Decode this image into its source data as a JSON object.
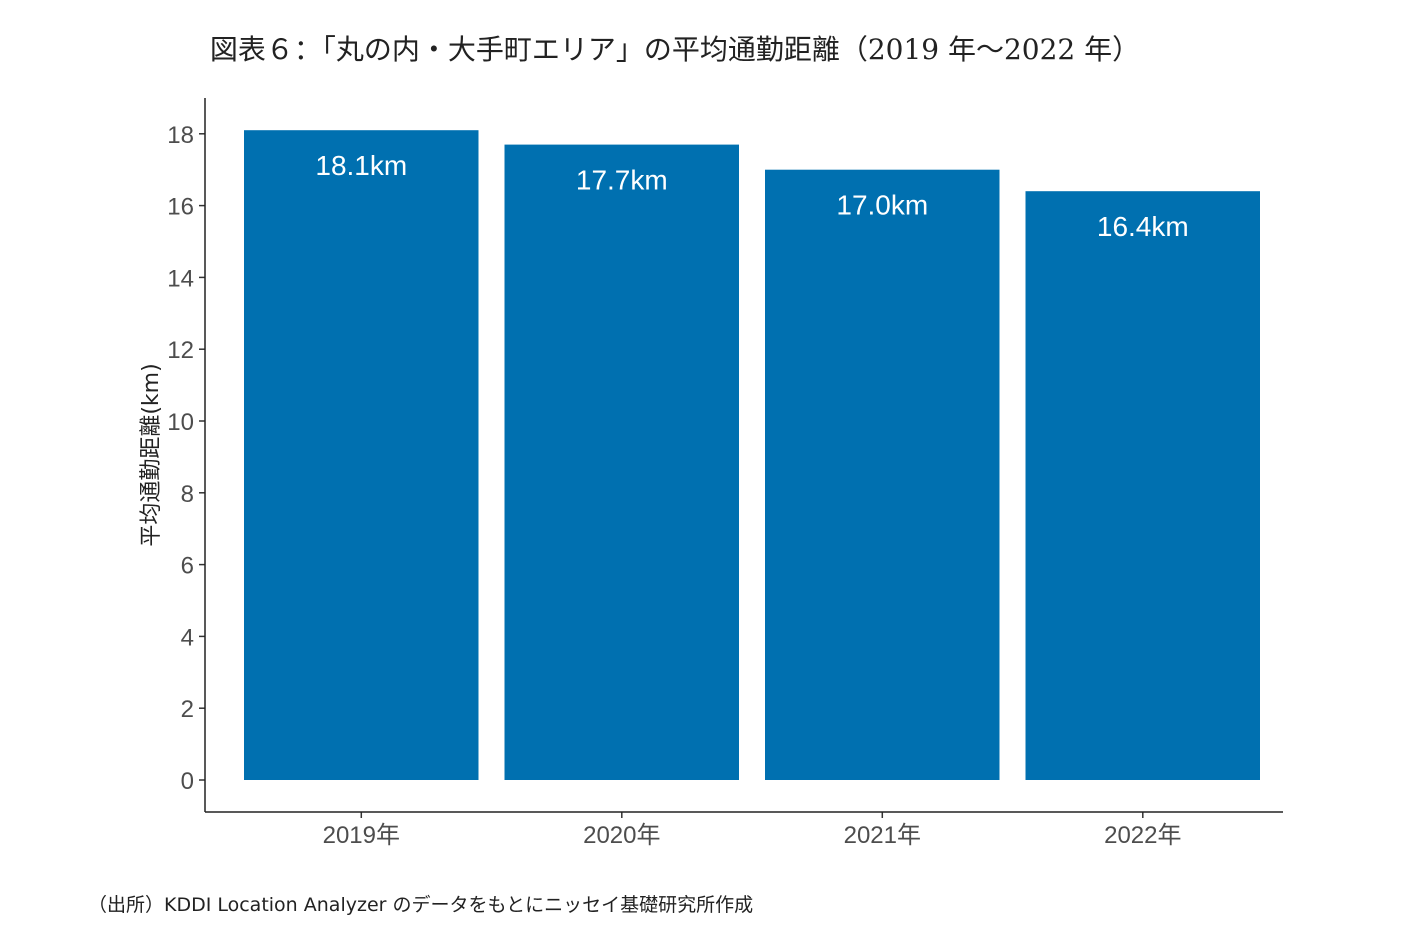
{
  "chart_data": {
    "type": "bar",
    "title": "図表６：「丸の内・大手町エリア」の平均通勤距離（2019 年～2022 年）",
    "xlabel": "",
    "ylabel": "平均通勤距離(km)",
    "categories": [
      "2019年",
      "2020年",
      "2021年",
      "2022年"
    ],
    "values": [
      18.1,
      17.7,
      17.0,
      16.4
    ],
    "data_labels": [
      "18.1km",
      "17.7km",
      "17.0km",
      "16.4km"
    ],
    "yticks": [
      0,
      2,
      4,
      6,
      8,
      10,
      12,
      14,
      16,
      18
    ],
    "ylim": [
      0,
      19
    ],
    "grid": false,
    "bar_color": "#0070B0"
  },
  "source": "（出所）KDDI Location Analyzer のデータをもとにニッセイ基礎研究所作成"
}
